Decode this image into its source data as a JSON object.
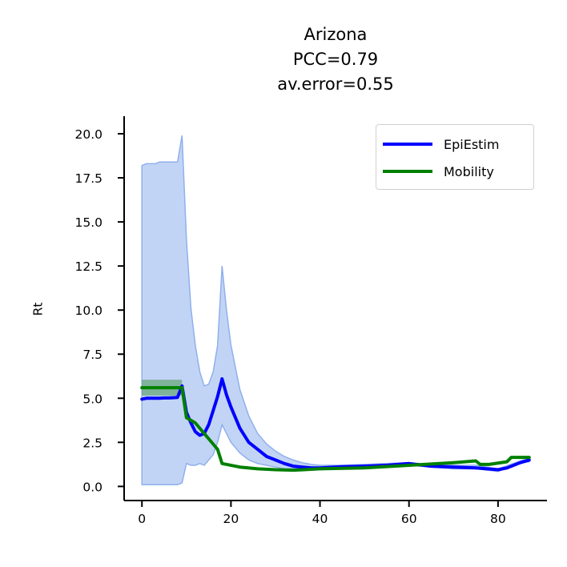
{
  "chart_data": {
    "type": "line",
    "title_lines": [
      "Arizona",
      "PCC=0.79",
      "av.error=0.55"
    ],
    "xlabel": "",
    "ylabel": "Rt",
    "xlim": [
      -4,
      91
    ],
    "ylim": [
      -0.8,
      21
    ],
    "xticks": [
      0,
      20,
      40,
      60,
      80
    ],
    "yticks": [
      0.0,
      2.5,
      5.0,
      7.5,
      10.0,
      12.5,
      15.0,
      17.5,
      20.0
    ],
    "xtick_labels": [
      "0",
      "20",
      "40",
      "60",
      "80"
    ],
    "ytick_labels": [
      "0.0",
      "2.5",
      "5.0",
      "7.5",
      "10.0",
      "12.5",
      "15.0",
      "17.5",
      "20.0"
    ],
    "grid": false,
    "legend_position": "top-right",
    "colors": {
      "epiestim": "#0000ff",
      "band": "#8fb0ec",
      "mobility": "#008000"
    },
    "epiestim_band": {
      "x": [
        0,
        1,
        2,
        3,
        4,
        5,
        6,
        7,
        8,
        9,
        10,
        11,
        12,
        13,
        14,
        15,
        16,
        17,
        18,
        19,
        20,
        22,
        24,
        26,
        28,
        30,
        32,
        34,
        36,
        38,
        40,
        45,
        50,
        55,
        60,
        65,
        70,
        75,
        80,
        85,
        87
      ],
      "lower": [
        0.1,
        0.1,
        0.1,
        0.1,
        0.1,
        0.1,
        0.1,
        0.1,
        0.1,
        0.2,
        1.3,
        1.2,
        1.2,
        1.3,
        1.2,
        1.5,
        1.8,
        2.5,
        3.5,
        3.0,
        2.5,
        1.9,
        1.5,
        1.3,
        1.2,
        1.1,
        1.0,
        1.0,
        1.0,
        0.95,
        0.95,
        1.0,
        1.05,
        1.15,
        1.2,
        1.1,
        1.0,
        1.0,
        0.85,
        1.35,
        1.4
      ],
      "upper": [
        18.2,
        18.3,
        18.3,
        18.3,
        18.4,
        18.4,
        18.4,
        18.4,
        18.4,
        19.9,
        14.0,
        10.1,
        8.0,
        6.5,
        5.7,
        5.8,
        6.5,
        8.0,
        12.5,
        10.0,
        8.0,
        5.5,
        4.0,
        3.0,
        2.4,
        2.0,
        1.7,
        1.5,
        1.35,
        1.25,
        1.2,
        1.2,
        1.25,
        1.3,
        1.35,
        1.25,
        1.2,
        1.2,
        1.0,
        1.45,
        1.6
      ]
    },
    "series": [
      {
        "name": "EpiEstim",
        "x": [
          0,
          1,
          2,
          3,
          4,
          5,
          6,
          7,
          8,
          9,
          10,
          11,
          12,
          13,
          14,
          15,
          16,
          17,
          18,
          19,
          20,
          22,
          24,
          26,
          28,
          30,
          32,
          34,
          36,
          38,
          40,
          45,
          50,
          55,
          60,
          65,
          70,
          75,
          80,
          82,
          85,
          87
        ],
        "y": [
          4.95,
          5.0,
          5.0,
          5.0,
          5.0,
          5.02,
          5.02,
          5.03,
          5.05,
          5.7,
          4.2,
          3.6,
          3.1,
          2.9,
          3.0,
          3.5,
          4.3,
          5.1,
          6.1,
          5.2,
          4.5,
          3.3,
          2.5,
          2.1,
          1.7,
          1.5,
          1.3,
          1.15,
          1.1,
          1.05,
          1.05,
          1.12,
          1.15,
          1.2,
          1.3,
          1.15,
          1.1,
          1.05,
          0.95,
          1.05,
          1.35,
          1.5
        ]
      },
      {
        "name": "Mobility",
        "x": [
          0,
          9,
          10,
          12,
          14,
          16,
          17,
          18,
          22,
          26,
          30,
          34,
          38,
          40,
          50,
          60,
          70,
          75,
          76,
          78,
          82,
          83,
          87
        ],
        "y": [
          5.6,
          5.6,
          3.9,
          3.6,
          3.0,
          2.4,
          2.1,
          1.3,
          1.1,
          1.0,
          0.95,
          0.92,
          0.97,
          1.0,
          1.05,
          1.2,
          1.35,
          1.45,
          1.25,
          1.25,
          1.4,
          1.65,
          1.65
        ]
      }
    ]
  }
}
